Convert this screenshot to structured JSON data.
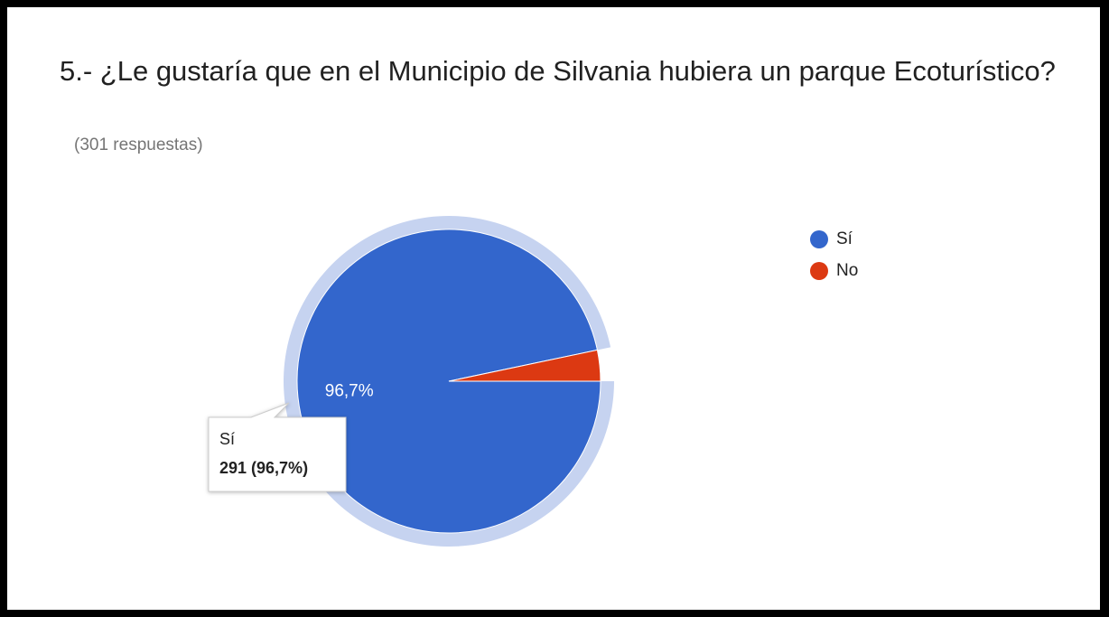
{
  "chart_data": {
    "type": "pie",
    "title": "5.- ¿Le gustaría que en el Municipio de Silvania hubiera un parque Ecoturístico?",
    "subtitle": "(301 respuestas)",
    "categories": [
      "Sí",
      "No"
    ],
    "values": [
      96.7,
      3.3
    ],
    "value_labels": [
      "96,7%",
      null
    ],
    "colors": [
      "#3366cc",
      "#dc3912"
    ],
    "tooltip_text": "291 (96,7%)",
    "legend": "right"
  }
}
